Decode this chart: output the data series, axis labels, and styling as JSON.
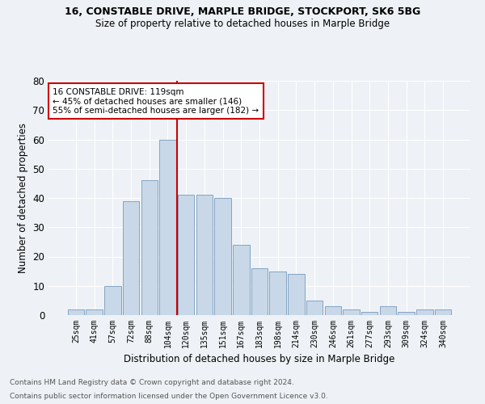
{
  "title1": "16, CONSTABLE DRIVE, MARPLE BRIDGE, STOCKPORT, SK6 5BG",
  "title2": "Size of property relative to detached houses in Marple Bridge",
  "xlabel": "Distribution of detached houses by size in Marple Bridge",
  "ylabel": "Number of detached properties",
  "categories": [
    "25sqm",
    "41sqm",
    "57sqm",
    "72sqm",
    "88sqm",
    "104sqm",
    "120sqm",
    "135sqm",
    "151sqm",
    "167sqm",
    "183sqm",
    "198sqm",
    "214sqm",
    "230sqm",
    "246sqm",
    "261sqm",
    "277sqm",
    "293sqm",
    "309sqm",
    "324sqm",
    "340sqm"
  ],
  "values": [
    2,
    2,
    10,
    39,
    46,
    60,
    41,
    41,
    40,
    24,
    16,
    15,
    14,
    5,
    3,
    2,
    1,
    3,
    1,
    2,
    2
  ],
  "bar_color": "#c8d8e8",
  "bar_edge_color": "#7799bb",
  "vline_pos": 5.5,
  "vline_color": "#cc0000",
  "ylim": [
    0,
    80
  ],
  "yticks": [
    0,
    10,
    20,
    30,
    40,
    50,
    60,
    70,
    80
  ],
  "annotation_text": "16 CONSTABLE DRIVE: 119sqm\n← 45% of detached houses are smaller (146)\n55% of semi-detached houses are larger (182) →",
  "annotation_box_color": "#ffffff",
  "annotation_box_edge": "#cc0000",
  "footnote1": "Contains HM Land Registry data © Crown copyright and database right 2024.",
  "footnote2": "Contains public sector information licensed under the Open Government Licence v3.0.",
  "bg_color": "#eef2f6",
  "grid_color": "#ffffff"
}
